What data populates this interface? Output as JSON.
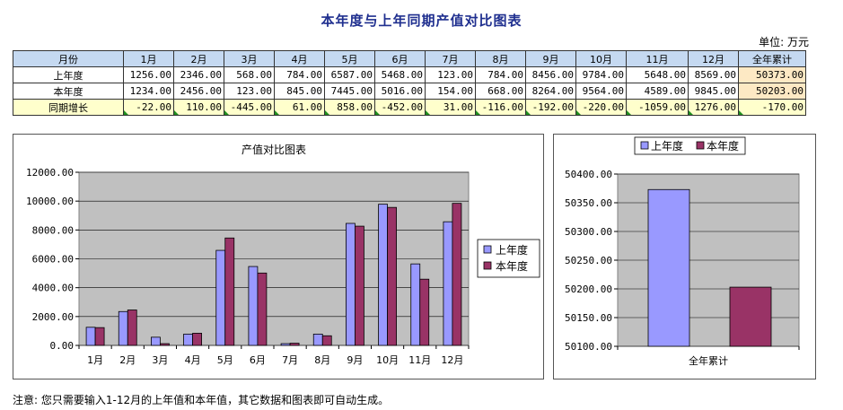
{
  "title": "本年度与上年同期产值对比图表",
  "unit_label": "单位: 万元",
  "table": {
    "header": [
      "月份",
      "1月",
      "2月",
      "3月",
      "4月",
      "5月",
      "6月",
      "7月",
      "8月",
      "9月",
      "10月",
      "11月",
      "12月",
      "全年累计"
    ],
    "rows": [
      {
        "label": "上年度",
        "cells": [
          "1256.00",
          "2346.00",
          "568.00",
          "784.00",
          "6587.00",
          "5468.00",
          "123.00",
          "784.00",
          "8456.00",
          "9784.00",
          "5648.00",
          "8569.00",
          "50373.00"
        ]
      },
      {
        "label": "本年度",
        "cells": [
          "1234.00",
          "2456.00",
          "123.00",
          "845.00",
          "7445.00",
          "5016.00",
          "154.00",
          "668.00",
          "8264.00",
          "9564.00",
          "4589.00",
          "9845.00",
          "50203.00"
        ]
      },
      {
        "label": "同期增长",
        "cells": [
          "-22.00",
          "110.00",
          "-445.00",
          "61.00",
          "858.00",
          "-452.00",
          "31.00",
          "-116.00",
          "-192.00",
          "-220.00",
          "-1059.00",
          "1276.00",
          "-170.00"
        ]
      }
    ]
  },
  "note": "注意: 您只需要输入1-12月的上年值和本年值，其它数据和图表即可自动生成。",
  "colors": {
    "series1": "#9999ff",
    "series2": "#993366",
    "plot_bg": "#c0c0c0"
  },
  "chart_data": [
    {
      "type": "bar",
      "title": "产值对比图表",
      "categories": [
        "1月",
        "2月",
        "3月",
        "4月",
        "5月",
        "6月",
        "7月",
        "8月",
        "9月",
        "10月",
        "11月",
        "12月"
      ],
      "series": [
        {
          "name": "上年度",
          "values": [
            1256,
            2346,
            568,
            784,
            6587,
            5468,
            123,
            784,
            8456,
            9784,
            5648,
            8569
          ]
        },
        {
          "name": "本年度",
          "values": [
            1234,
            2456,
            123,
            845,
            7445,
            5016,
            154,
            668,
            8264,
            9564,
            4589,
            9845
          ]
        }
      ],
      "ylim": [
        0,
        12000
      ],
      "yticks": [
        "0.00",
        "2000.00",
        "4000.00",
        "6000.00",
        "8000.00",
        "10000.00",
        "12000.00"
      ],
      "grid": true,
      "legend": "right"
    },
    {
      "type": "bar",
      "categories": [
        "全年累计"
      ],
      "series": [
        {
          "name": "上年度",
          "values": [
            50373
          ]
        },
        {
          "name": "本年度",
          "values": [
            50203
          ]
        }
      ],
      "ylim": [
        50100,
        50400
      ],
      "yticks": [
        "50100.00",
        "50150.00",
        "50200.00",
        "50250.00",
        "50300.00",
        "50350.00",
        "50400.00"
      ],
      "grid": true,
      "legend": "top"
    }
  ]
}
